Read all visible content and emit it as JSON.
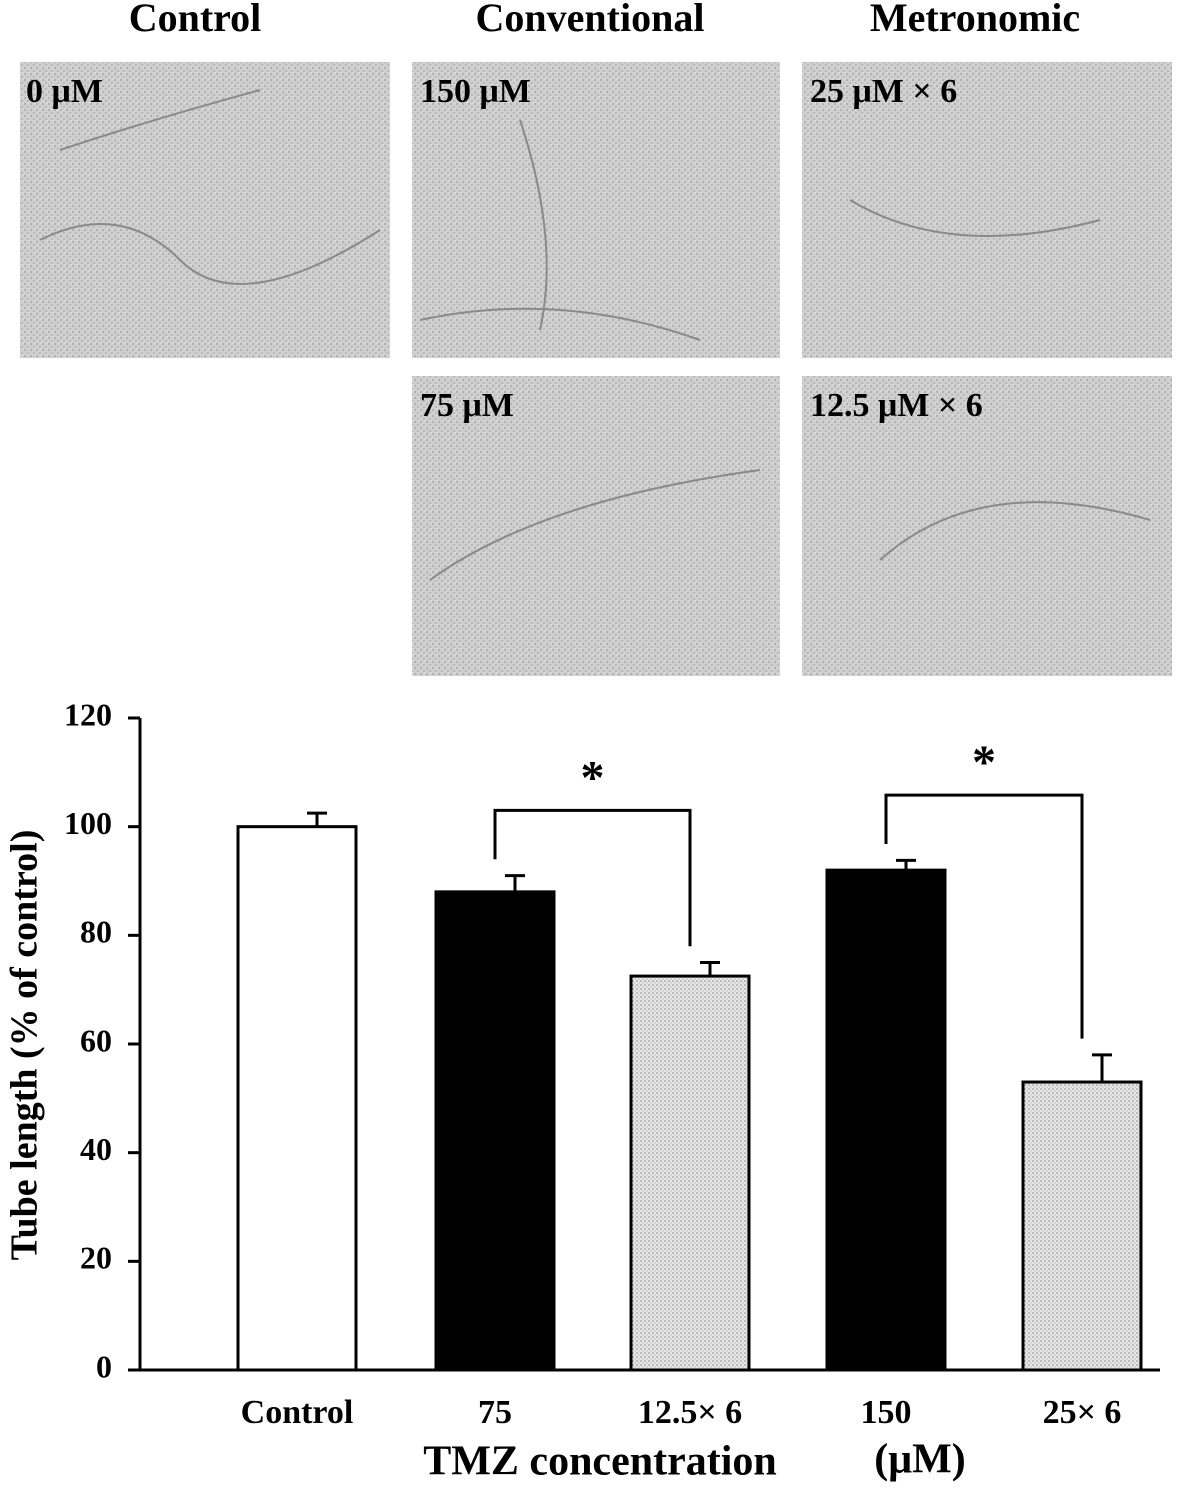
{
  "panels": {
    "column_titles": [
      "Control",
      "Conventional",
      "Metronomic"
    ],
    "images": [
      {
        "label": "0 μM"
      },
      {
        "label": "150 μM"
      },
      {
        "label": "25 μM × 6"
      },
      {
        "label": "75 μM"
      },
      {
        "label": "12.5 μM × 6"
      }
    ]
  },
  "chart_data": {
    "type": "bar",
    "y_label": "Tube length (% of control)",
    "x_label": "TMZ concentration",
    "x_unit": "(μM)",
    "categories": [
      "Control",
      "75",
      "12.5× 6",
      "150",
      "25× 6"
    ],
    "values": [
      100,
      88,
      72.5,
      92,
      53
    ],
    "errors": [
      2.5,
      3,
      2.5,
      1.8,
      5
    ],
    "colors": [
      "white",
      "black",
      "dotted",
      "black",
      "dotted"
    ],
    "ylim": [
      0,
      120
    ],
    "yticks": [
      0,
      20,
      40,
      60,
      80,
      100,
      120
    ],
    "annotations": [
      {
        "text": "*",
        "from": 1,
        "to": 2
      },
      {
        "text": "*",
        "from": 3,
        "to": 4
      }
    ]
  }
}
